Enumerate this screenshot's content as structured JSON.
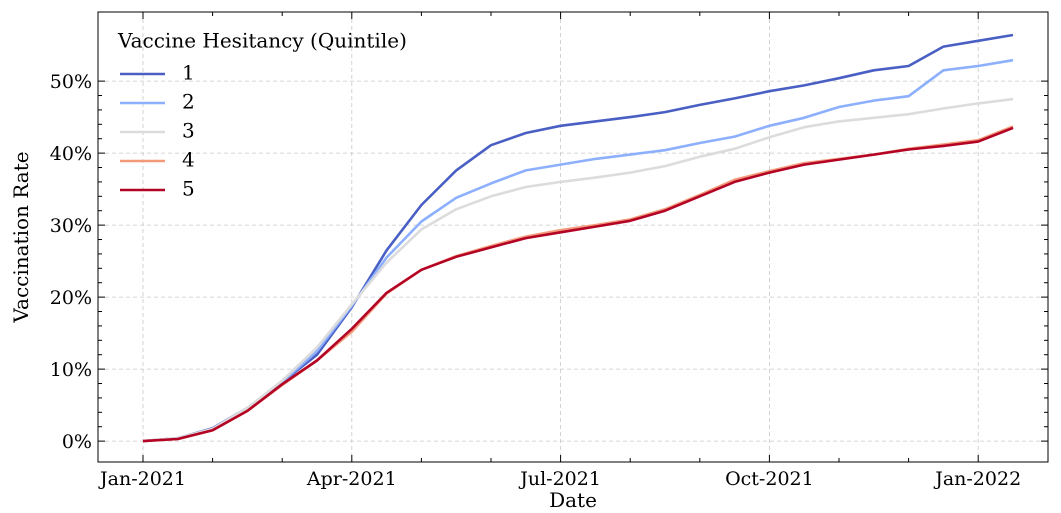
{
  "chart_data": {
    "type": "line",
    "xlabel": "Date",
    "ylabel": "Vaccination Rate",
    "legend_title": "Vaccine Hesitancy (Quintile)",
    "legend_loc": "upper left",
    "grid": true,
    "categories": [
      "Jan-2021",
      null,
      null,
      null,
      null,
      null,
      "Apr-2021",
      null,
      null,
      null,
      null,
      null,
      "Jul-2021",
      null,
      null,
      null,
      null,
      null,
      "Oct-2021",
      null,
      null,
      null,
      null,
      null,
      "Jan-2022",
      null
    ],
    "ylim": [
      -2.9,
      59.6
    ],
    "yticks": [
      {
        "value": 0,
        "label": "0%"
      },
      {
        "value": 10,
        "label": "10%"
      },
      {
        "value": 20,
        "label": "20%"
      },
      {
        "value": 30,
        "label": "30%"
      },
      {
        "value": 40,
        "label": "40%"
      },
      {
        "value": 50,
        "label": "50%"
      }
    ],
    "series": [
      {
        "name": "1",
        "color": "#4a5fc4",
        "values": [
          0,
          0.4,
          1.8,
          4.6,
          8.2,
          12,
          18.6,
          26.5,
          32.8,
          37.6,
          41.1,
          42.8,
          43.8,
          44.4,
          45,
          45.7,
          46.7,
          47.6,
          48.6,
          49.4,
          50.4,
          51.5,
          52.1,
          54.8,
          55.6,
          56.4
        ]
      },
      {
        "name": "2",
        "color": "#8db0fe",
        "values": [
          0,
          0.4,
          1.7,
          4.6,
          8.2,
          12.5,
          18.8,
          25.5,
          30.5,
          33.8,
          35.8,
          37.6,
          38.4,
          39.2,
          39.8,
          40.4,
          41.4,
          42.3,
          43.8,
          44.9,
          46.4,
          47.3,
          47.9,
          51.5,
          52.1,
          52.9
        ]
      },
      {
        "name": "3",
        "color": "#dddcdc",
        "values": [
          0,
          0.4,
          1.7,
          4.6,
          8.4,
          13,
          19,
          24.8,
          29.4,
          32.2,
          34,
          35.3,
          36,
          36.6,
          37.3,
          38.2,
          39.5,
          40.6,
          42.2,
          43.6,
          44.4,
          44.9,
          45.4,
          46.2,
          46.9,
          47.5
        ]
      },
      {
        "name": "4",
        "color": "#f49a7b",
        "values": [
          0,
          0.3,
          1.5,
          4.2,
          7.8,
          11.2,
          15.2,
          20.5,
          23.8,
          25.7,
          27.1,
          28.4,
          29.3,
          30,
          30.8,
          32.2,
          34.2,
          36.3,
          37.5,
          38.6,
          39.2,
          39.8,
          40.6,
          41.2,
          41.8,
          43.7
        ]
      },
      {
        "name": "5",
        "color": "#b40426",
        "values": [
          0,
          0.3,
          1.5,
          4.2,
          7.9,
          11.2,
          15.6,
          20.6,
          23.8,
          25.6,
          26.9,
          28.2,
          29,
          29.8,
          30.6,
          32,
          34,
          36,
          37.3,
          38.4,
          39.1,
          39.8,
          40.5,
          41,
          41.6,
          43.5
        ]
      }
    ]
  }
}
